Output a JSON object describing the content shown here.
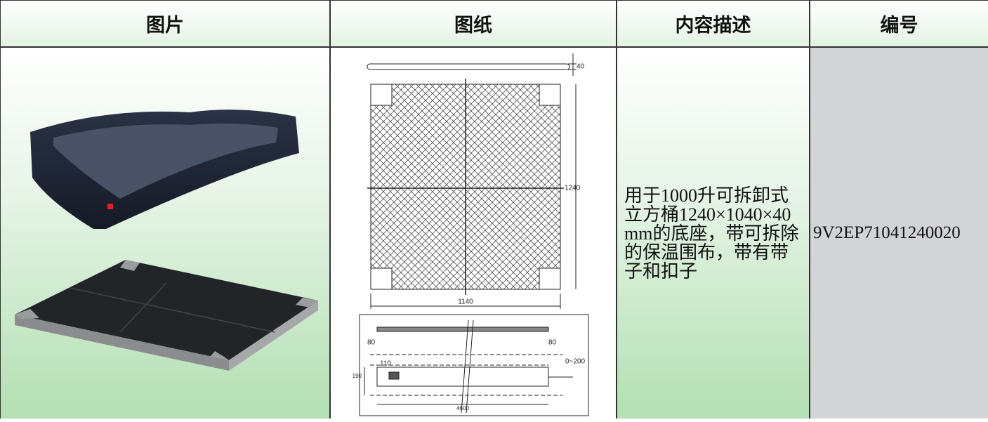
{
  "table": {
    "header": [
      "图片",
      "图纸",
      "内容描述",
      "编号"
    ],
    "row": {
      "description": "用于1000升可拆卸式立方桶1240×1040×40mm的底座，带可拆除的保温围布，带有带子和扣子",
      "code": "9V2EP71041240020"
    }
  },
  "drawing": {
    "dimensions": [
      "40",
      "1240",
      "1140",
      "80",
      "80",
      "110",
      "190",
      "0~200",
      "4600"
    ]
  }
}
